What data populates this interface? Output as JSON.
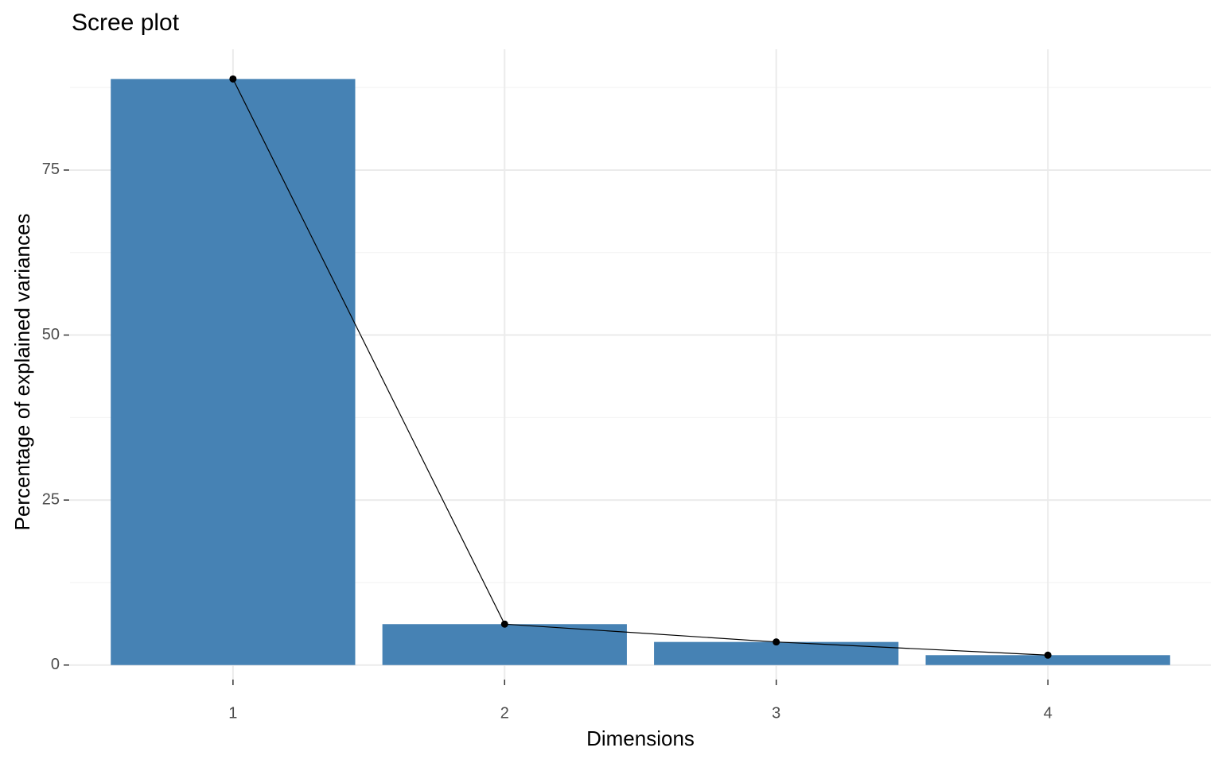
{
  "chart_data": {
    "type": "bar",
    "title": "Scree plot",
    "x_label": "Dimensions",
    "y_label": "Percentage of explained variances",
    "categories": [
      "1",
      "2",
      "3",
      "4"
    ],
    "values": [
      88.8,
      6.2,
      3.5,
      1.5
    ],
    "color": "#4682b4",
    "line_color": "#000000",
    "ylim": [
      -2.2,
      93.3
    ],
    "yticks": [
      0,
      25,
      50,
      75
    ],
    "grid": true
  }
}
